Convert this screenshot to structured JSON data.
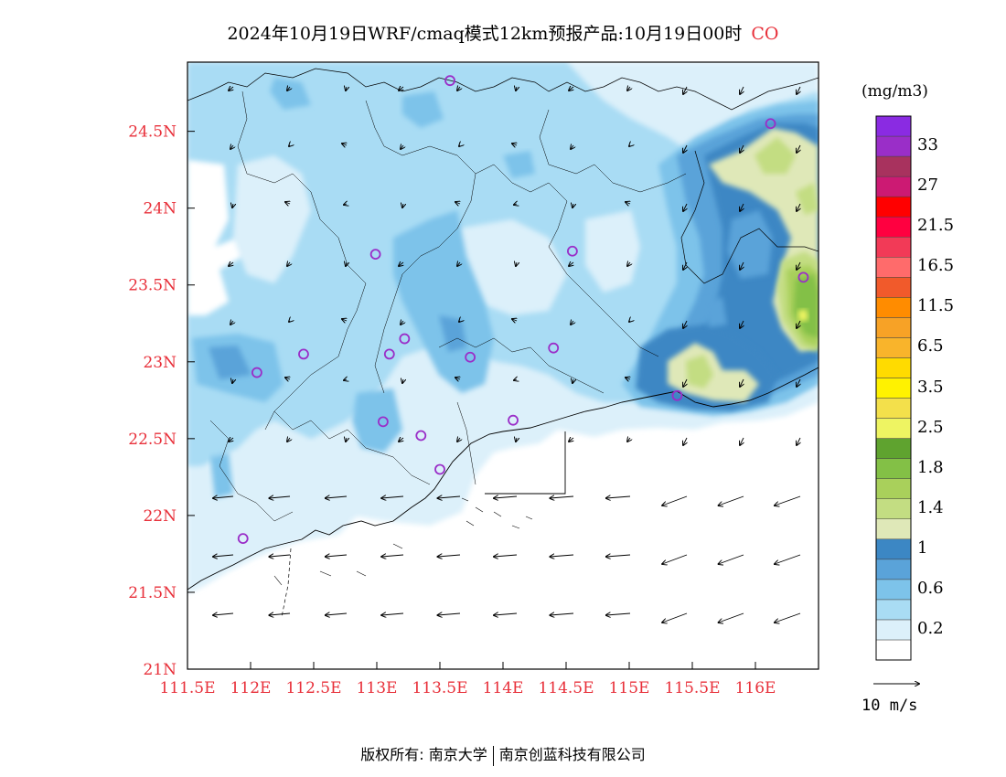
{
  "title": {
    "text": "2024年10月19日WRF/cmaq模式12km预报产品:10月19日00时",
    "species": "CO"
  },
  "axes": {
    "lat_labels": [
      "24.5N",
      "24N",
      "23.5N",
      "23N",
      "22.5N",
      "22N",
      "21.5N",
      "21N"
    ],
    "lon_labels": [
      "111.5E",
      "112E",
      "112.5E",
      "113E",
      "113.5E",
      "114E",
      "114.5E",
      "115E",
      "115.5E",
      "116E"
    ],
    "lat_range": [
      21,
      24.95
    ],
    "lon_range": [
      111.5,
      116.5
    ]
  },
  "legend": {
    "unit": "(mg/m3)",
    "levels": [
      {
        "label": "",
        "color": "#ffffff"
      },
      {
        "label": "0.2",
        "color": "#dcf0fa"
      },
      {
        "label": "",
        "color": "#a9dcf4"
      },
      {
        "label": "0.6",
        "color": "#7dc3ea"
      },
      {
        "label": "",
        "color": "#5aa3d9"
      },
      {
        "label": "1",
        "color": "#3c87c4"
      },
      {
        "label": "",
        "color": "#dfe8b8"
      },
      {
        "label": "1.4",
        "color": "#c3dd82"
      },
      {
        "label": "",
        "color": "#a9d05b"
      },
      {
        "label": "1.8",
        "color": "#83c046"
      },
      {
        "label": "",
        "color": "#5fa32f"
      },
      {
        "label": "2.5",
        "color": "#eef462"
      },
      {
        "label": "",
        "color": "#f3e04b"
      },
      {
        "label": "3.5",
        "color": "#fff200"
      },
      {
        "label": "",
        "color": "#ffdb00"
      },
      {
        "label": "6.5",
        "color": "#f9b42b"
      },
      {
        "label": "",
        "color": "#f7a226"
      },
      {
        "label": "11.5",
        "color": "#ff8c00"
      },
      {
        "label": "",
        "color": "#f15a2b"
      },
      {
        "label": "16.5",
        "color": "#ff6b6b"
      },
      {
        "label": "",
        "color": "#f23a57"
      },
      {
        "label": "21.5",
        "color": "#ff0040"
      },
      {
        "label": "",
        "color": "#ff0000"
      },
      {
        "label": "27",
        "color": "#cc1a73"
      },
      {
        "label": "",
        "color": "#a8325e"
      },
      {
        "label": "33",
        "color": "#9a2ec8"
      },
      {
        "label": "",
        "color": "#8a2be2"
      }
    ]
  },
  "wind_reference": {
    "label": "10 m/s"
  },
  "stations": [
    {
      "lon": 113.58,
      "lat": 24.83
    },
    {
      "lon": 116.12,
      "lat": 24.55
    },
    {
      "lon": 112.99,
      "lat": 23.7
    },
    {
      "lon": 114.55,
      "lat": 23.72
    },
    {
      "lon": 116.38,
      "lat": 23.55
    },
    {
      "lon": 113.22,
      "lat": 23.15
    },
    {
      "lon": 112.42,
      "lat": 23.05
    },
    {
      "lon": 113.1,
      "lat": 23.05
    },
    {
      "lon": 113.74,
      "lat": 23.03
    },
    {
      "lon": 114.4,
      "lat": 23.09
    },
    {
      "lon": 112.05,
      "lat": 22.93
    },
    {
      "lon": 115.38,
      "lat": 22.78
    },
    {
      "lon": 113.05,
      "lat": 22.61
    },
    {
      "lon": 113.35,
      "lat": 22.52
    },
    {
      "lon": 114.08,
      "lat": 22.62
    },
    {
      "lon": 113.5,
      "lat": 22.3
    },
    {
      "lon": 111.94,
      "lat": 21.85
    }
  ],
  "colors": {
    "axis_labels": "#e8303a",
    "station_marker": "#9a2ec8",
    "coastline": "#000000"
  },
  "footer": {
    "left": "版权所有: 南京大学",
    "right": "南京创蓝科技有限公司"
  }
}
